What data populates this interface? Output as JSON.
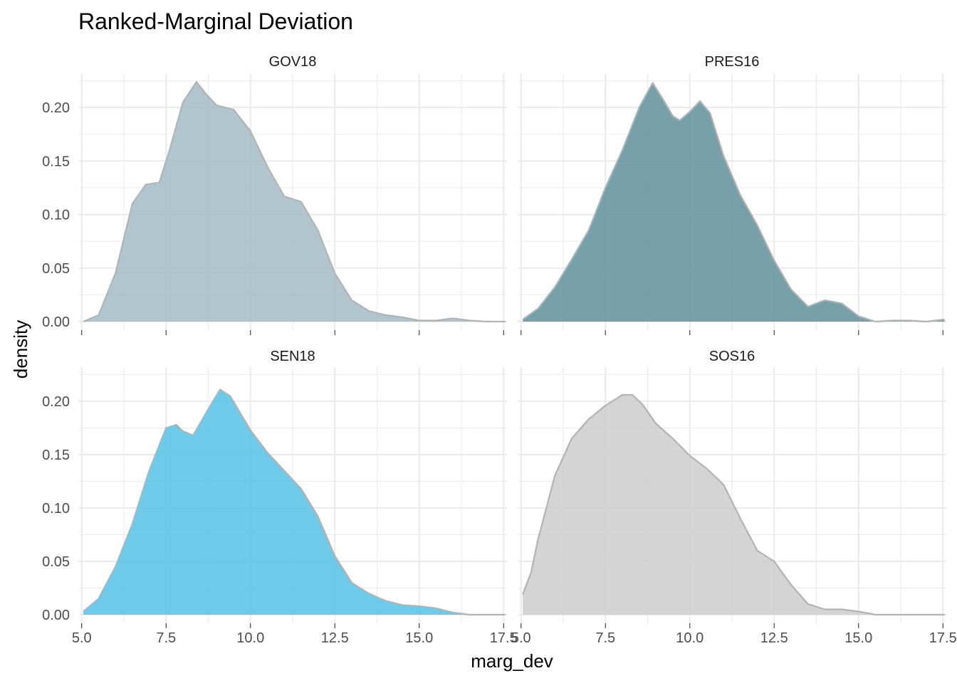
{
  "chart_data": {
    "type": "area",
    "title": "Ranked-Marginal Deviation",
    "xlabel": "marg_dev",
    "ylabel": "density",
    "xlim": [
      4.9,
      17.6
    ],
    "ylim": [
      -0.008,
      0.232
    ],
    "x_ticks": [
      5.0,
      7.5,
      10.0,
      12.5,
      15.0,
      17.5
    ],
    "x_tick_labels": [
      "5.0",
      "7.5",
      "10.0",
      "12.5",
      "15.0",
      "17.5"
    ],
    "y_ticks": [
      0.0,
      0.05,
      0.1,
      0.15,
      0.2
    ],
    "y_tick_labels": [
      "0.00",
      "0.05",
      "0.10",
      "0.15",
      "0.20"
    ],
    "grid": true,
    "outline_color": "#b3b3b3",
    "panels": [
      {
        "name": "GOV18",
        "fill": "#a3bbc7",
        "x": [
          5.05,
          5.5,
          6.0,
          6.5,
          6.9,
          7.3,
          7.6,
          8.0,
          8.4,
          8.7,
          9.0,
          9.5,
          10.0,
          10.5,
          11.0,
          11.5,
          12.0,
          12.5,
          13.0,
          13.5,
          14.0,
          14.5,
          15.0,
          15.5,
          16.0,
          16.5,
          17.0,
          17.55
        ],
        "y": [
          0.0,
          0.006,
          0.045,
          0.11,
          0.128,
          0.13,
          0.16,
          0.205,
          0.224,
          0.212,
          0.202,
          0.198,
          0.178,
          0.145,
          0.117,
          0.112,
          0.085,
          0.045,
          0.02,
          0.01,
          0.006,
          0.004,
          0.001,
          0.001,
          0.003,
          0.001,
          0.0,
          0.0
        ]
      },
      {
        "name": "PRES16",
        "fill": "#5f8f9c",
        "x": [
          5.05,
          5.5,
          6.0,
          6.5,
          7.0,
          7.5,
          8.0,
          8.5,
          8.9,
          9.2,
          9.5,
          9.7,
          10.0,
          10.3,
          10.6,
          11.0,
          11.5,
          12.0,
          12.5,
          13.0,
          13.5,
          14.0,
          14.5,
          15.0,
          15.5,
          16.0,
          16.5,
          17.0,
          17.55
        ],
        "y": [
          0.002,
          0.012,
          0.032,
          0.058,
          0.085,
          0.125,
          0.16,
          0.2,
          0.223,
          0.208,
          0.192,
          0.188,
          0.196,
          0.206,
          0.195,
          0.155,
          0.118,
          0.09,
          0.057,
          0.03,
          0.014,
          0.02,
          0.017,
          0.005,
          0.0,
          0.001,
          0.001,
          0.0,
          0.002
        ]
      },
      {
        "name": "SEN18",
        "fill": "#56c1e6",
        "x": [
          5.05,
          5.5,
          6.0,
          6.5,
          7.0,
          7.5,
          7.8,
          8.0,
          8.3,
          8.7,
          9.1,
          9.4,
          10.0,
          10.5,
          11.0,
          11.5,
          12.0,
          12.5,
          13.0,
          13.5,
          14.0,
          14.5,
          15.0,
          15.5,
          16.0,
          16.5,
          17.0,
          17.55
        ],
        "y": [
          0.003,
          0.015,
          0.045,
          0.085,
          0.135,
          0.175,
          0.178,
          0.172,
          0.168,
          0.19,
          0.211,
          0.205,
          0.173,
          0.152,
          0.135,
          0.118,
          0.092,
          0.055,
          0.03,
          0.02,
          0.013,
          0.009,
          0.008,
          0.006,
          0.002,
          0.0,
          0.0,
          0.0
        ]
      },
      {
        "name": "SOS16",
        "fill": "#cccccc",
        "x": [
          5.05,
          5.3,
          5.5,
          6.0,
          6.5,
          7.0,
          7.5,
          8.0,
          8.3,
          8.6,
          9.0,
          9.5,
          10.0,
          10.5,
          11.0,
          11.5,
          12.0,
          12.5,
          13.0,
          13.5,
          14.0,
          14.5,
          15.0,
          15.5,
          16.0,
          16.5,
          17.0,
          17.55
        ],
        "y": [
          0.019,
          0.04,
          0.07,
          0.13,
          0.165,
          0.183,
          0.196,
          0.206,
          0.206,
          0.197,
          0.179,
          0.165,
          0.149,
          0.137,
          0.122,
          0.09,
          0.06,
          0.05,
          0.028,
          0.01,
          0.005,
          0.005,
          0.003,
          0.0,
          0.0,
          0.0,
          0.0,
          0.0
        ]
      }
    ]
  }
}
